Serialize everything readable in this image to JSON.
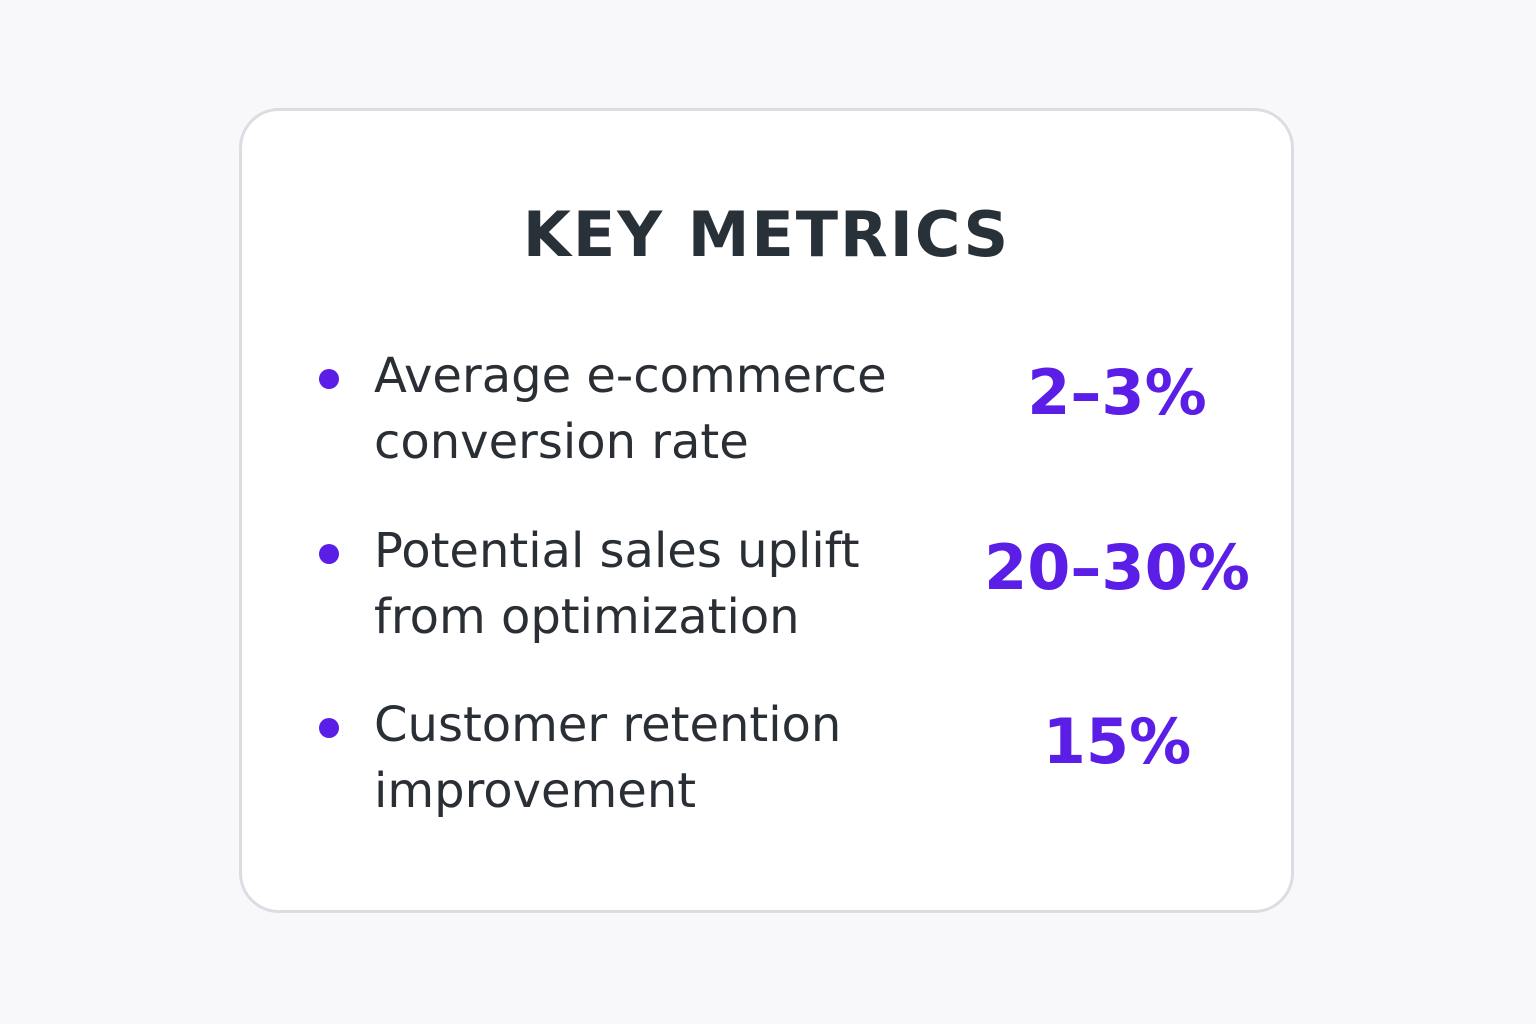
{
  "card": {
    "title": "KEY METRICS",
    "metrics": [
      {
        "label_line1": "Average e-commerce",
        "label_line2": "conversion rate",
        "value": "2–3%"
      },
      {
        "label_line1": "Potential sales uplift",
        "label_line2": "from optimization",
        "value": "20–30%"
      },
      {
        "label_line1": "Customer retention",
        "label_line2": "improvement",
        "value": "15%"
      }
    ]
  },
  "colors": {
    "accent": "#5a1ee6",
    "text": "#2a2f36",
    "border": "#dcdce2",
    "background": "#f8f8fa"
  }
}
